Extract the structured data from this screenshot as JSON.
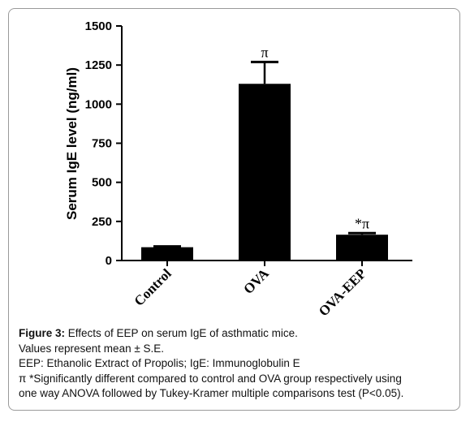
{
  "chart_data": {
    "type": "bar",
    "categories": [
      "Control",
      "OVA",
      "OVA-EEP"
    ],
    "values": [
      85,
      1130,
      165
    ],
    "errors": [
      5,
      140,
      10
    ],
    "annotations": [
      "",
      "π",
      "*π"
    ],
    "ylabel": "Serum IgE level (ng/ml)",
    "ylim": [
      0,
      1500
    ],
    "yticks": [
      "0",
      "250",
      "500",
      "750",
      "1000",
      "1250",
      "1500"
    ],
    "bar_color": "#000000"
  },
  "caption": {
    "figure_label": "Figure 3:",
    "title": " Effects of EEP on serum IgE of asthmatic mice.",
    "line2": "Values represent mean ± S.E.",
    "line3": "EEP: Ethanolic Extract of Propolis; IgE: Immunoglobulin E",
    "line4": "π *Significantly different compared to control and OVA group respectively using",
    "line5": "one way ANOVA followed by Tukey-Kramer multiple comparisons test (P<0.05)."
  }
}
